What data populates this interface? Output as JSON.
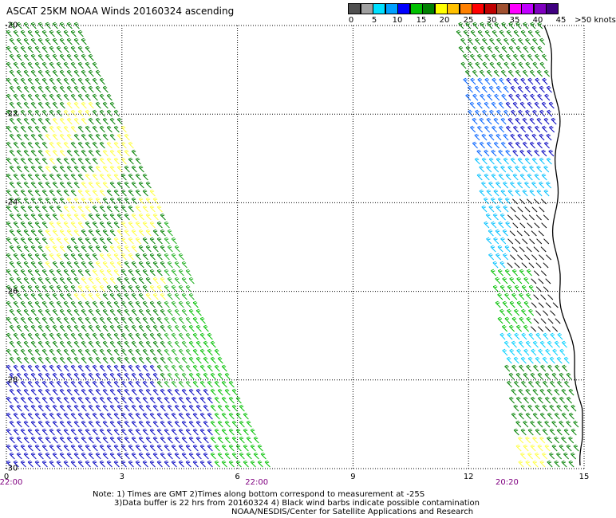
{
  "title": "ASCAT 25KM NOAA Winds 20160324 ascending",
  "colorbar": {
    "colors": [
      "#505050",
      "#a0a0a0",
      "#00e0ff",
      "#00a0ff",
      "#0000ff",
      "#00c000",
      "#008000",
      "#ffff00",
      "#ffc000",
      "#ff8000",
      "#ff0000",
      "#c00000",
      "#a05030",
      "#ff00ff",
      "#c000ff",
      "#8000c0",
      "#400080"
    ],
    "labels": [
      "0",
      "5",
      "10",
      "15",
      "20",
      "25",
      "30",
      "35",
      "40",
      "45",
      ">50 knots"
    ]
  },
  "axes": {
    "lat_labels": [
      "-20",
      "-22",
      "-24",
      "-26",
      "-28",
      "-30"
    ],
    "lat_values": [
      -20,
      -22,
      -24,
      -26,
      -28,
      -30
    ],
    "lon_labels": [
      "0",
      "3",
      "6",
      "9",
      "12",
      "15"
    ],
    "lon_values": [
      0,
      3,
      6,
      9,
      12,
      15
    ],
    "time_labels": [
      "22:00",
      "22:00",
      "20:20"
    ],
    "time_lon": [
      0,
      6.5,
      13
    ]
  },
  "notes": [
    "Note: 1) Times are GMT 2)Times along bottom correspond to measurement at -25S",
    "3)Data buffer is 22 hrs from 20160324 4) Black wind barbs indicate possible contamination",
    "NOAA/NESDIS/Center for Satellite Applications and Research"
  ],
  "icons": {
    "wind_barbs": "wind-barb-icon",
    "coastline": "coastline"
  }
}
